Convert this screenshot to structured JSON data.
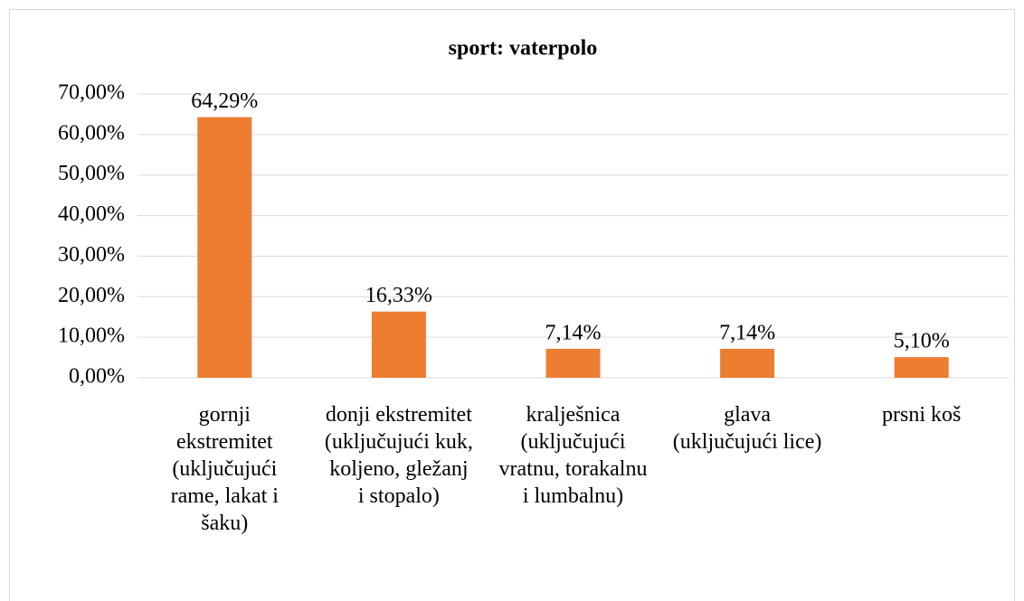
{
  "chart_data": {
    "type": "bar",
    "title": "sport: vaterpolo",
    "categories": [
      "gornji ekstremitet (uključujući rame, lakat i šaku)",
      "donji ekstremitet (uključujući kuk, koljeno, gležanj i stopalo)",
      "kralješnica (uključujući vratnu, torakalnu i lumbalnu)",
      "glava (uključujući lice)",
      "prsni koš"
    ],
    "values": [
      64.29,
      16.33,
      7.14,
      7.14,
      5.1
    ],
    "value_labels": [
      "64,29%",
      "16,33%",
      "7,14%",
      "7,14%",
      "5,10%"
    ],
    "color": "#ed7d31",
    "ylim": [
      0,
      70
    ],
    "yticks": [
      {
        "value": 0,
        "label": "0,00%"
      },
      {
        "value": 10,
        "label": "10,00%"
      },
      {
        "value": 20,
        "label": "20,00%"
      },
      {
        "value": 30,
        "label": "30,00%"
      },
      {
        "value": 40,
        "label": "40,00%"
      },
      {
        "value": 50,
        "label": "50,00%"
      },
      {
        "value": 60,
        "label": "60,00%"
      },
      {
        "value": 70,
        "label": "70,00%"
      }
    ],
    "grid": true
  }
}
